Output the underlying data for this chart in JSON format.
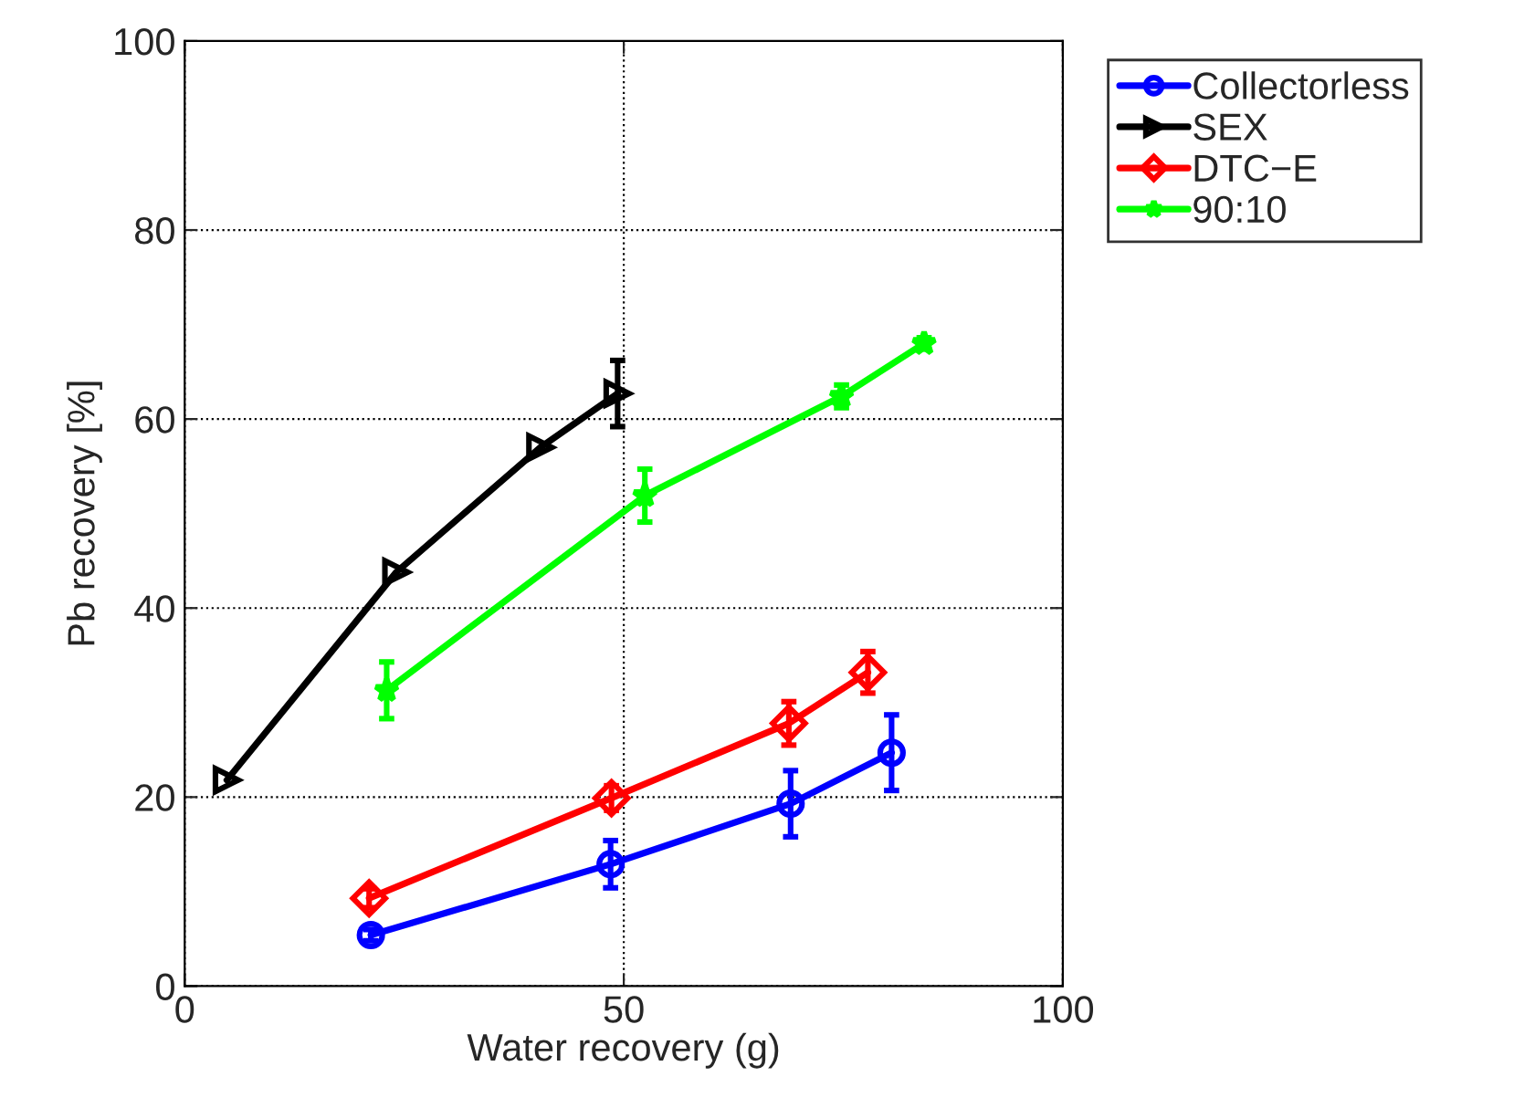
{
  "chart_data": {
    "type": "line",
    "xlabel": "Water recovery (g)",
    "ylabel": "Pb recovery [%]",
    "xlim": [
      0,
      100
    ],
    "xticks": [
      0,
      50,
      100
    ],
    "ylim": [
      0,
      100
    ],
    "yticks": [
      0,
      20,
      40,
      60,
      80,
      100
    ],
    "grid": true,
    "legend": "top right",
    "line_style": "solid",
    "series": [
      {
        "name": "Collectorless",
        "color": "#0000ff",
        "marker": "circle",
        "x": [
          21.2,
          48.5,
          69,
          80.5
        ],
        "values": [
          5.4,
          12.9,
          19.3,
          24.7
        ],
        "errors": [
          0.6,
          2.5,
          3.5,
          4
        ]
      },
      {
        "name": "SEX",
        "color": "#000000",
        "marker": "triangle",
        "x": [
          4.8,
          24.1,
          40.5,
          49.3
        ],
        "values": [
          21.8,
          43.8,
          57,
          62.7
        ],
        "errors": [
          null,
          null,
          null,
          3.5
        ]
      },
      {
        "name": "DTC−E",
        "color": "#ff0000",
        "marker": "diamond",
        "x": [
          21,
          48.6,
          68.8,
          77.8
        ],
        "values": [
          9.3,
          19.9,
          27.8,
          33.2
        ],
        "errors": [
          1,
          1.3,
          2.3,
          2.2
        ]
      },
      {
        "name": "90:10",
        "color": "#00ff00",
        "marker": "star",
        "x": [
          23,
          52.4,
          74.8,
          84.2
        ],
        "values": [
          31.3,
          51.9,
          62.4,
          68
        ],
        "errors": [
          3,
          2.8,
          1.2,
          0.6
        ]
      }
    ]
  }
}
